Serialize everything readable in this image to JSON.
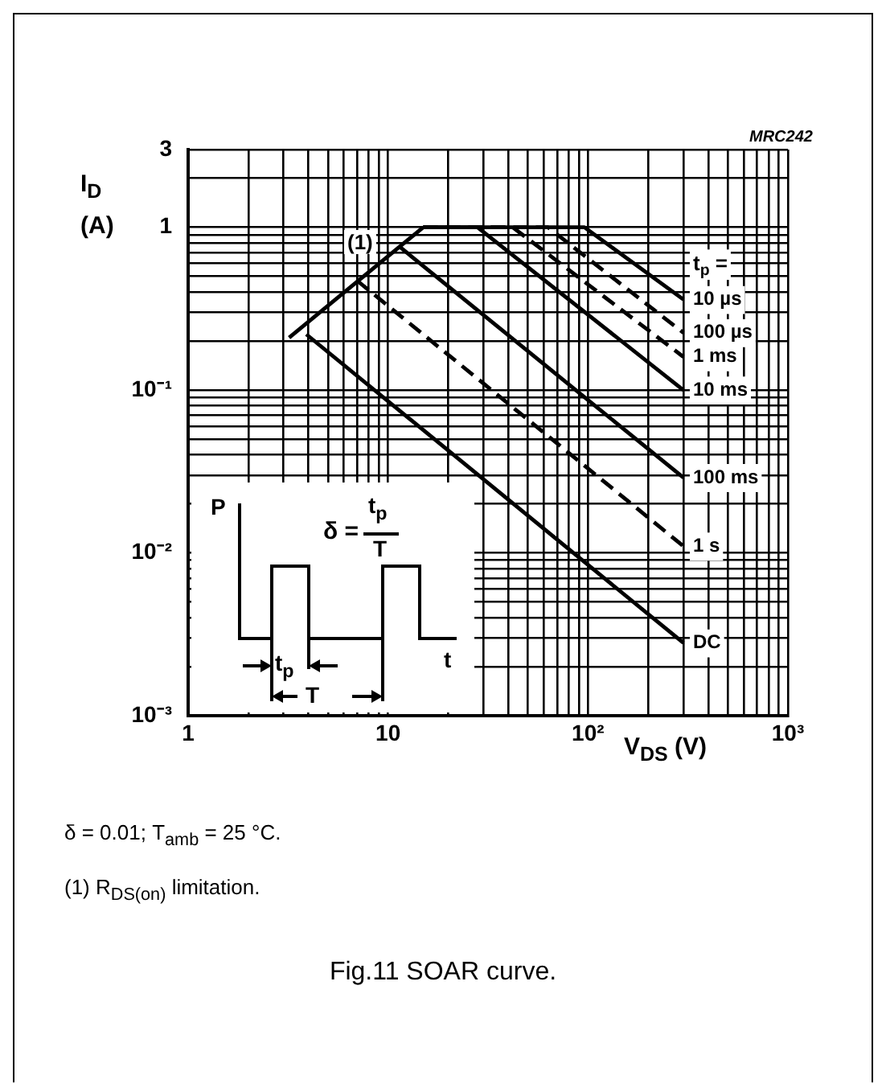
{
  "chart_data": {
    "type": "line",
    "title": "Fig.11  SOAR curve.",
    "xlabel": "V$_{DS}$ (V)",
    "ylabel": "I$_{D}$ (A)",
    "legend_title": "t$_{p}$ =",
    "log": "xy",
    "grid": true,
    "legend": false,
    "marker": "none",
    "xlim": [
      1,
      1000
    ],
    "ylim": [
      0.001,
      3
    ],
    "xticks": [
      1,
      {
        "value": 2,
        "label": null
      },
      {
        "value": 3,
        "label": null
      },
      {
        "value": 4,
        "label": null
      },
      {
        "value": 5,
        "label": null
      },
      {
        "value": 6,
        "label": null
      },
      {
        "value": 7,
        "label": null
      },
      {
        "value": 8,
        "label": null
      },
      {
        "value": 9,
        "label": null
      },
      10,
      {
        "value": 20,
        "label": null
      },
      {
        "value": 30,
        "label": null
      },
      {
        "value": 40,
        "label": null
      },
      {
        "value": 50,
        "label": null
      },
      {
        "value": 60,
        "label": null
      },
      {
        "value": 70,
        "label": null
      },
      {
        "value": 80,
        "label": null
      },
      {
        "value": 90,
        "label": null
      },
      {
        "value": 100,
        "label": "10²"
      },
      {
        "value": 200,
        "label": null
      },
      {
        "value": 300,
        "label": null
      },
      {
        "value": 400,
        "label": null
      },
      {
        "value": 500,
        "label": null
      },
      {
        "value": 600,
        "label": null
      },
      {
        "value": 700,
        "label": null
      },
      {
        "value": 800,
        "label": null
      },
      {
        "value": 900,
        "label": null
      },
      {
        "value": 1000,
        "label": "10³"
      }
    ],
    "yticks": [
      {
        "value": 0.001,
        "label": "10⁻³"
      },
      {
        "value": 0.002,
        "label": null
      },
      {
        "value": 0.003,
        "label": null
      },
      {
        "value": 0.004,
        "label": null
      },
      {
        "value": 0.005,
        "label": null
      },
      {
        "value": 0.006,
        "label": null
      },
      {
        "value": 0.007,
        "label": null
      },
      {
        "value": 0.008,
        "label": null
      },
      {
        "value": 0.009,
        "label": null
      },
      {
        "value": 0.01,
        "label": "10⁻²"
      },
      {
        "value": 0.02,
        "label": null
      },
      {
        "value": 0.03,
        "label": null
      },
      {
        "value": 0.04,
        "label": null
      },
      {
        "value": 0.05,
        "label": null
      },
      {
        "value": 0.06,
        "label": null
      },
      {
        "value": 0.07,
        "label": null
      },
      {
        "value": 0.08,
        "label": null
      },
      {
        "value": 0.09,
        "label": null
      },
      {
        "value": 0.1,
        "label": "10⁻¹"
      },
      {
        "value": 0.2,
        "label": null
      },
      {
        "value": 0.3,
        "label": null
      },
      {
        "value": 0.4,
        "label": null
      },
      {
        "value": 0.5,
        "label": null
      },
      {
        "value": 0.6,
        "label": null
      },
      {
        "value": 0.7,
        "label": null
      },
      {
        "value": 0.8,
        "label": null
      },
      {
        "value": 0.9,
        "label": null
      },
      1,
      {
        "value": 2,
        "label": null
      },
      3
    ],
    "series": [
      {
        "color": "#000000",
        "line_style": "solid",
        "x": [
          3.2,
          15
        ],
        "values": [
          0.21,
          1
        ]
      },
      {
        "name": "10 µs",
        "color": "#000000",
        "line_style": "solid",
        "x": [
          15,
          96,
          300
        ],
        "values": [
          1,
          1,
          0.36
        ]
      },
      {
        "name": "100 µs",
        "color": "#000000",
        "line_style": "dashed",
        "x": [
          15,
          63,
          300
        ],
        "values": [
          1,
          1,
          0.225
        ]
      },
      {
        "name": "1 ms",
        "color": "#000000",
        "line_style": "dashed",
        "x": [
          15,
          42,
          300
        ],
        "values": [
          1,
          1,
          0.16
        ]
      },
      {
        "name": "10 ms",
        "color": "#000000",
        "line_style": "solid",
        "x": [
          15,
          28,
          300
        ],
        "values": [
          1,
          1,
          0.1
        ]
      },
      {
        "name": "100 ms",
        "color": "#000000",
        "line_style": "solid",
        "x": [
          11.4,
          300
        ],
        "values": [
          0.76,
          0.029
        ]
      },
      {
        "name": "1 s",
        "color": "#000000",
        "line_style": "dashed",
        "x": [
          7,
          300
        ],
        "values": [
          0.47,
          0.011
        ]
      },
      {
        "name": "DC",
        "color": "#000000",
        "line_style": "solid",
        "x": [
          3.9,
          300
        ],
        "values": [
          0.22,
          0.0028
        ]
      }
    ],
    "annotations": [
      "(1)",
      "MRC242",
      "P",
      "δ =",
      "t$_{p}$",
      "T",
      "t$_{p}$",
      "T",
      "t",
      "δ = 0.01; T$_{amb}$ = 25 °C.",
      "(1)  R$_{DS(on)}$ limitation."
    ]
  }
}
